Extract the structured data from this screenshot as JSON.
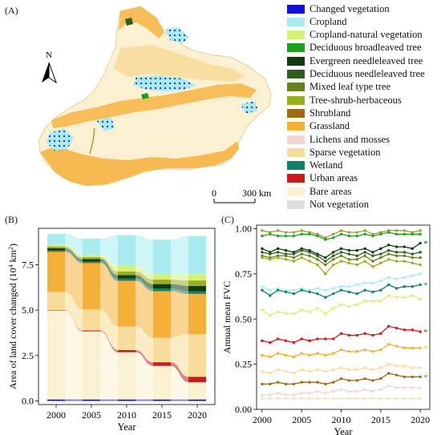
{
  "panel_labels": {
    "a": "(A)",
    "b": "(B)",
    "c": "(C)"
  },
  "map": {
    "north_label": "N",
    "scale_start": "0",
    "scale_end": "300 km"
  },
  "legend": [
    {
      "label": "Changed vegetation",
      "color": "#1010d8"
    },
    {
      "label": "Cropland",
      "color": "#a8ecef"
    },
    {
      "label": "Cropland-natural vegetation",
      "color": "#d7f07a"
    },
    {
      "label": "Deciduous broadleaved tree",
      "color": "#1f9e1f"
    },
    {
      "label": "Evergreen needleleaved tree",
      "color": "#0d3d0d"
    },
    {
      "label": "Deciduous needleleaved tree",
      "color": "#2e5e1a"
    },
    {
      "label": "Mixed leaf type tree",
      "color": "#6b7f1c"
    },
    {
      "label": "Tree-shrub-herbaceous",
      "color": "#9aae22"
    },
    {
      "label": "Shrubland",
      "color": "#9e6a12"
    },
    {
      "label": "Grassland",
      "color": "#f5b03a"
    },
    {
      "label": "Lichens and mosses",
      "color": "#f6d4d4"
    },
    {
      "label": "Sparse vegetation",
      "color": "#f7dc9a"
    },
    {
      "label": "Wetland",
      "color": "#12806a"
    },
    {
      "label": "Urban areas",
      "color": "#cc1a1a"
    },
    {
      "label": "Bare areas",
      "color": "#fbf0d2"
    },
    {
      "label": "Not vegetation",
      "color": "#dedede"
    }
  ],
  "chart_data": [
    {
      "type": "bar",
      "panel": "B",
      "xlabel": "Year",
      "ylabel": "Area of land cover changed (10⁴ km²)",
      "ylabel_parts": {
        "main": "Area of land cover changed (10",
        "sup": "4",
        "unit": " km",
        "sup2": "2",
        "end": ")"
      },
      "categories": [
        "2000",
        "2005",
        "2010",
        "2015",
        "2020"
      ],
      "xticks": [
        "2000",
        "2005",
        "2010",
        "2015",
        "2020"
      ],
      "yticks": [
        "0.0",
        "2.5",
        "5.0",
        "7.5"
      ],
      "ylim": [
        -0.2,
        9.5
      ],
      "stacked": true,
      "series": [
        {
          "name": "Changed vegetation",
          "color": "#1010d8",
          "values": [
            0.08,
            0.08,
            0.08,
            0.08,
            0.08
          ]
        },
        {
          "name": "Bare areas",
          "color": "#fbf0d2",
          "values": [
            4.9,
            3.75,
            2.6,
            1.85,
            0.95
          ]
        },
        {
          "name": "Urban areas",
          "color": "#cc1a1a",
          "values": [
            0.02,
            0.05,
            0.12,
            0.2,
            0.3
          ]
        },
        {
          "name": "Sparse vegetation",
          "color": "#f7dc9a",
          "values": [
            1.0,
            1.15,
            1.3,
            1.35,
            2.35
          ]
        },
        {
          "name": "Grassland",
          "color": "#f5b03a",
          "values": [
            2.2,
            2.55,
            2.5,
            2.55,
            2.2
          ]
        },
        {
          "name": "Shrubland",
          "color": "#9e6a12",
          "values": [
            0.03,
            0.03,
            0.03,
            0.03,
            0.03
          ]
        },
        {
          "name": "Wetland",
          "color": "#12806a",
          "values": [
            0.05,
            0.05,
            0.1,
            0.12,
            0.12
          ]
        },
        {
          "name": "Evergreen needleleaved tree",
          "color": "#0d3d0d",
          "values": [
            0.12,
            0.15,
            0.2,
            0.25,
            0.3
          ]
        },
        {
          "name": "Tree-shrub-herbaceous",
          "color": "#9aae22",
          "values": [
            0.1,
            0.1,
            0.2,
            0.25,
            0.3
          ]
        },
        {
          "name": "Cropland-natural vegetation",
          "color": "#d7f07a",
          "values": [
            0.1,
            0.12,
            0.3,
            0.3,
            0.35
          ]
        },
        {
          "name": "Cropland",
          "color": "#a8ecef",
          "values": [
            0.6,
            0.9,
            1.7,
            1.9,
            2.1
          ]
        }
      ]
    },
    {
      "type": "line",
      "panel": "C",
      "xlabel": "Year",
      "ylabel": "Annual mean FVC",
      "xlim": [
        1999.3,
        2021.2
      ],
      "ylim": [
        0.0,
        1.02
      ],
      "xticks": [
        "2000",
        "2005",
        "2010",
        "2015",
        "2020"
      ],
      "yticks": [
        "0.00",
        "0.25",
        "0.50",
        "0.75",
        "1.00"
      ],
      "x": [
        2000,
        2001,
        2002,
        2003,
        2004,
        2005,
        2006,
        2007,
        2008,
        2009,
        2010,
        2011,
        2012,
        2013,
        2014,
        2015,
        2016,
        2017,
        2018,
        2019,
        2020
      ],
      "series": [
        {
          "color": "#9e9e30",
          "star": false,
          "values": [
            0.99,
            0.98,
            0.99,
            0.98,
            0.98,
            0.99,
            0.98,
            0.97,
            0.95,
            0.97,
            0.99,
            0.98,
            0.98,
            0.99,
            0.97,
            0.98,
            0.99,
            0.99,
            0.99,
            0.98,
            0.99
          ]
        },
        {
          "color": "#1f9e1f",
          "star": false,
          "values": [
            0.96,
            0.97,
            0.96,
            0.96,
            0.96,
            0.97,
            0.97,
            0.96,
            0.94,
            0.95,
            0.97,
            0.96,
            0.96,
            0.97,
            0.96,
            0.97,
            0.98,
            0.97,
            0.97,
            0.97,
            0.97
          ]
        },
        {
          "color": "#0d3d0d",
          "star": true,
          "values": [
            0.89,
            0.87,
            0.89,
            0.88,
            0.87,
            0.89,
            0.88,
            0.86,
            0.84,
            0.87,
            0.89,
            0.88,
            0.88,
            0.89,
            0.87,
            0.89,
            0.91,
            0.9,
            0.9,
            0.89,
            0.92
          ]
        },
        {
          "color": "#2e5e1a",
          "star": false,
          "values": [
            0.87,
            0.86,
            0.87,
            0.86,
            0.86,
            0.88,
            0.87,
            0.85,
            0.82,
            0.85,
            0.87,
            0.86,
            0.85,
            0.87,
            0.85,
            0.86,
            0.88,
            0.87,
            0.87,
            0.86,
            0.87
          ]
        },
        {
          "color": "#6b7f1c",
          "star": false,
          "values": [
            0.85,
            0.84,
            0.85,
            0.85,
            0.84,
            0.86,
            0.85,
            0.83,
            0.8,
            0.83,
            0.85,
            0.83,
            0.83,
            0.85,
            0.82,
            0.84,
            0.86,
            0.85,
            0.85,
            0.84,
            0.84
          ]
        },
        {
          "color": "#9aae22",
          "star": false,
          "values": [
            0.84,
            0.83,
            0.84,
            0.83,
            0.82,
            0.84,
            0.82,
            0.8,
            0.75,
            0.8,
            0.82,
            0.81,
            0.8,
            0.82,
            0.79,
            0.81,
            0.83,
            0.82,
            0.82,
            0.81,
            0.8
          ]
        },
        {
          "color": "#a8ecef",
          "star": false,
          "values": [
            0.68,
            0.66,
            0.67,
            0.66,
            0.66,
            0.67,
            0.66,
            0.67,
            0.66,
            0.67,
            0.68,
            0.68,
            0.69,
            0.7,
            0.7,
            0.71,
            0.73,
            0.72,
            0.73,
            0.74,
            0.75
          ]
        },
        {
          "color": "#12806a",
          "star": true,
          "values": [
            0.66,
            0.63,
            0.66,
            0.65,
            0.64,
            0.66,
            0.65,
            0.64,
            0.62,
            0.64,
            0.66,
            0.65,
            0.64,
            0.66,
            0.65,
            0.66,
            0.69,
            0.67,
            0.68,
            0.68,
            0.69
          ]
        },
        {
          "color": "#d7f07a",
          "star": false,
          "values": [
            0.55,
            0.52,
            0.54,
            0.53,
            0.53,
            0.55,
            0.54,
            0.56,
            0.53,
            0.56,
            0.58,
            0.57,
            0.58,
            0.6,
            0.6,
            0.6,
            0.63,
            0.62,
            0.62,
            0.63,
            0.61
          ]
        },
        {
          "color": "#cc1a1a",
          "star": true,
          "values": [
            0.38,
            0.37,
            0.39,
            0.38,
            0.37,
            0.39,
            0.38,
            0.39,
            0.39,
            0.39,
            0.42,
            0.41,
            0.41,
            0.42,
            0.41,
            0.42,
            0.46,
            0.45,
            0.44,
            0.44,
            0.43
          ]
        },
        {
          "color": "#f5b03a",
          "star": true,
          "values": [
            0.3,
            0.29,
            0.31,
            0.3,
            0.29,
            0.31,
            0.3,
            0.31,
            0.3,
            0.31,
            0.33,
            0.32,
            0.32,
            0.33,
            0.32,
            0.33,
            0.36,
            0.35,
            0.34,
            0.34,
            0.34
          ]
        },
        {
          "color": "#f7dc9a",
          "star": false,
          "values": [
            0.21,
            0.2,
            0.22,
            0.21,
            0.2,
            0.22,
            0.21,
            0.22,
            0.21,
            0.22,
            0.23,
            0.22,
            0.22,
            0.23,
            0.22,
            0.23,
            0.25,
            0.24,
            0.24,
            0.23,
            0.23
          ]
        },
        {
          "color": "#9e6a12",
          "star": true,
          "values": [
            0.14,
            0.14,
            0.15,
            0.14,
            0.14,
            0.15,
            0.15,
            0.15,
            0.14,
            0.15,
            0.17,
            0.16,
            0.16,
            0.17,
            0.16,
            0.17,
            0.2,
            0.19,
            0.18,
            0.18,
            0.18
          ]
        },
        {
          "color": "#f6d4d4",
          "star": false,
          "values": [
            0.08,
            0.08,
            0.09,
            0.08,
            0.08,
            0.09,
            0.09,
            0.1,
            0.09,
            0.1,
            0.11,
            0.1,
            0.1,
            0.11,
            0.1,
            0.11,
            0.13,
            0.12,
            0.12,
            0.12,
            0.12
          ]
        },
        {
          "color": "#efe4c8",
          "star": false,
          "values": [
            0.06,
            0.06,
            0.06,
            0.06,
            0.06,
            0.06,
            0.06,
            0.06,
            0.06,
            0.06,
            0.06,
            0.06,
            0.06,
            0.06,
            0.06,
            0.06,
            0.06,
            0.06,
            0.06,
            0.06,
            0.06
          ]
        }
      ]
    }
  ]
}
